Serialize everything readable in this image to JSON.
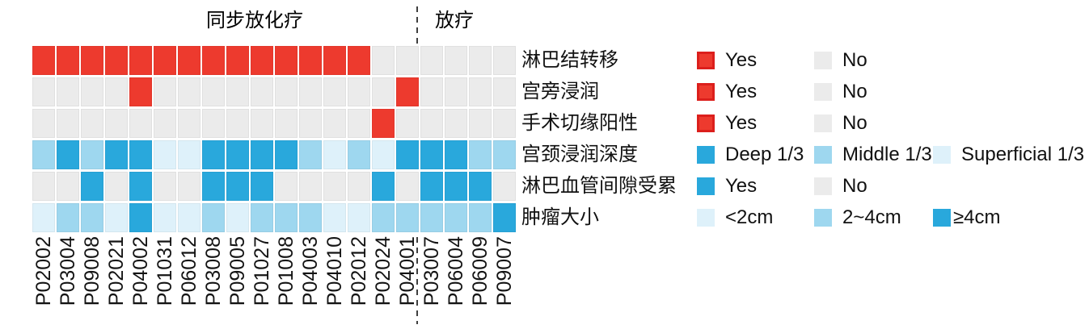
{
  "chart_data": {
    "type": "heatmap",
    "title_groups": [
      {
        "label": "同步放化疗",
        "patients_span": [
          1,
          16
        ]
      },
      {
        "label": "放疗",
        "patients_span": [
          17,
          20
        ]
      }
    ],
    "divider_after_column": 16,
    "x_labels": [
      "P02002",
      "P03004",
      "P09008",
      "P02021",
      "P04002",
      "P01031",
      "P06012",
      "P03008",
      "P09005",
      "P01027",
      "P01008",
      "P04003",
      "P04010",
      "P02012",
      "P02024",
      "P04001",
      "P03007",
      "P06004",
      "P06009",
      "P09007"
    ],
    "rows": [
      {
        "label": "淋巴结转移",
        "legend": [
          {
            "label": "Yes",
            "color": "red",
            "bordered": true
          },
          {
            "label": "No",
            "color": "gray",
            "bordered": false
          }
        ],
        "values": [
          "Yes",
          "Yes",
          "Yes",
          "Yes",
          "Yes",
          "Yes",
          "Yes",
          "Yes",
          "Yes",
          "Yes",
          "Yes",
          "Yes",
          "Yes",
          "Yes",
          "No",
          "No",
          "No",
          "No",
          "No",
          "No"
        ]
      },
      {
        "label": "宫旁浸润",
        "legend": [
          {
            "label": "Yes",
            "color": "red",
            "bordered": true
          },
          {
            "label": "No",
            "color": "gray",
            "bordered": false
          }
        ],
        "values": [
          "No",
          "No",
          "No",
          "No",
          "Yes",
          "No",
          "No",
          "No",
          "No",
          "No",
          "No",
          "No",
          "No",
          "No",
          "No",
          "Yes",
          "No",
          "No",
          "No",
          "No"
        ]
      },
      {
        "label": "手术切缘阳性",
        "legend": [
          {
            "label": "Yes",
            "color": "red",
            "bordered": true
          },
          {
            "label": "No",
            "color": "gray",
            "bordered": false
          }
        ],
        "values": [
          "No",
          "No",
          "No",
          "No",
          "No",
          "No",
          "No",
          "No",
          "No",
          "No",
          "No",
          "No",
          "No",
          "No",
          "Yes",
          "No",
          "No",
          "No",
          "No",
          "No"
        ]
      },
      {
        "label": "宫颈浸润深度",
        "legend": [
          {
            "label": "Deep 1/3",
            "color": "deep",
            "bordered": false
          },
          {
            "label": "Middle 1/3",
            "color": "middle",
            "bordered": false
          },
          {
            "label": "Superficial 1/3",
            "color": "superficial",
            "bordered": false
          }
        ],
        "values": [
          "Middle 1/3",
          "Deep 1/3",
          "Middle 1/3",
          "Deep 1/3",
          "Deep 1/3",
          "Superficial 1/3",
          "Superficial 1/3",
          "Deep 1/3",
          "Deep 1/3",
          "Deep 1/3",
          "Deep 1/3",
          "Middle 1/3",
          "Superficial 1/3",
          "Middle 1/3",
          "Superficial 1/3",
          "Deep 1/3",
          "Deep 1/3",
          "Deep 1/3",
          "Middle 1/3",
          "Middle 1/3"
        ]
      },
      {
        "label": "淋巴血管间隙受累",
        "legend": [
          {
            "label": "Yes",
            "color": "deep",
            "bordered": false
          },
          {
            "label": "No",
            "color": "gray",
            "bordered": false
          }
        ],
        "values": [
          "No",
          "No",
          "Yes",
          "No",
          "Yes",
          "No",
          "No",
          "Yes",
          "Yes",
          "Yes",
          "No",
          "No",
          "No",
          "No",
          "Yes",
          "No",
          "Yes",
          "Yes",
          "Yes",
          "No"
        ]
      },
      {
        "label": "肿瘤大小",
        "legend": [
          {
            "label": "<2cm",
            "color": "superficial",
            "bordered": false
          },
          {
            "label": "2~4cm",
            "color": "middle",
            "bordered": false
          },
          {
            "label": "≥4cm",
            "color": "deep",
            "bordered": false
          }
        ],
        "values": [
          "<2cm",
          "2~4cm",
          "2~4cm",
          "<2cm",
          "≥4cm",
          "<2cm",
          "<2cm",
          "2~4cm",
          "<2cm",
          "2~4cm",
          "2~4cm",
          "2~4cm",
          "<2cm",
          "<2cm",
          "2~4cm",
          "2~4cm",
          "2~4cm",
          "2~4cm",
          "2~4cm",
          "≥4cm"
        ]
      }
    ],
    "colors": {
      "red": "#ed3a2e",
      "red_border": "#dc1f1c",
      "gray": "#ebebeb",
      "deep": "#29a8dc",
      "middle": "#9ed7ef",
      "superficial": "#def1fa"
    }
  }
}
